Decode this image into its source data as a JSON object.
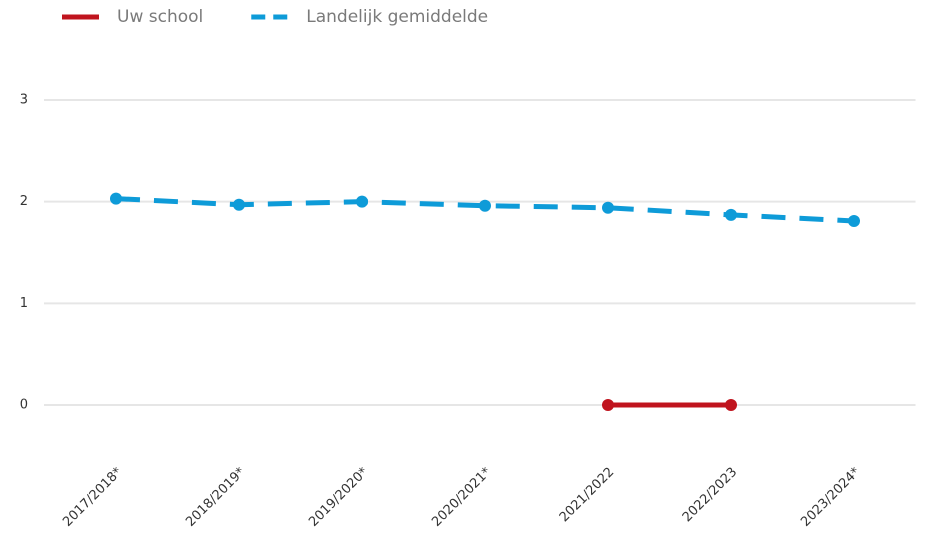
{
  "chart_data": {
    "type": "line",
    "categories": [
      "2017/2018*",
      "2018/2019*",
      "2019/2020*",
      "2020/2021*",
      "2021/2022",
      "2022/2023",
      "2023/2024*"
    ],
    "series": [
      {
        "name": "Uw school",
        "color": "#c0141e",
        "dash": false,
        "values": [
          null,
          null,
          null,
          null,
          0,
          0,
          null
        ]
      },
      {
        "name": "Landelijk gemiddelde",
        "color": "#0e9bd8",
        "dash": true,
        "values": [
          2.03,
          1.97,
          2.0,
          1.96,
          1.94,
          1.87,
          1.81
        ]
      }
    ],
    "ylim": [
      -0.5,
      3.3
    ],
    "yticks": [
      0,
      1,
      2,
      3
    ],
    "grid": true,
    "legend": "top-left"
  }
}
